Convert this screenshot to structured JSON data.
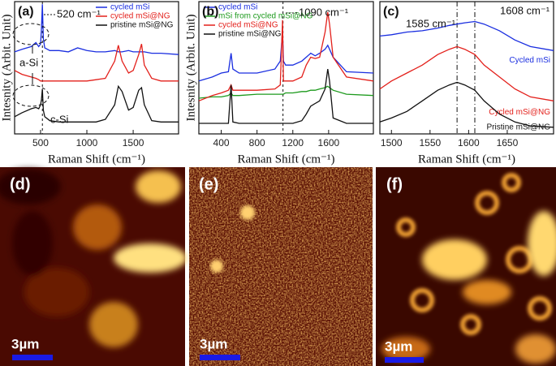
{
  "chart_data": [
    {
      "type": "line",
      "panel_label": "(a)",
      "x_label": "Raman Shift (cm⁻¹)",
      "y_label": "Intesnity (Arbit. Unit)",
      "xlim": [
        220,
        1990
      ],
      "xticks": [
        500,
        1000,
        1500
      ],
      "ylim": [
        0,
        10
      ],
      "legend": "upper right",
      "ref_lines": [
        520
      ],
      "annotations": [
        "520 cm⁻¹",
        "a-Si",
        "c-Si"
      ],
      "x": [
        220,
        300,
        400,
        450,
        480,
        500,
        510,
        520,
        530,
        545,
        600,
        700,
        800,
        900,
        1000,
        1100,
        1200,
        1300,
        1340,
        1380,
        1450,
        1500,
        1560,
        1590,
        1620,
        1700,
        1800,
        1990
      ],
      "series": [
        {
          "name": "cycled mSi",
          "color": "#1a2ee0",
          "values": [
            6.2,
            6.4,
            6.6,
            6.9,
            6.6,
            6.8,
            8,
            9.8,
            7.2,
            6.5,
            6.3,
            6.3,
            6.2,
            6.5,
            6.3,
            6.2,
            6.2,
            6.3,
            6.2,
            6.2,
            6.3,
            6.2,
            6.2,
            6.2,
            6.2,
            6.1,
            6.1,
            6.0
          ]
        },
        {
          "name": "cycled mSi@NG",
          "color": "#e3201b",
          "values": [
            4.8,
            4.5,
            4.3,
            4.2,
            4.1,
            4.0,
            4.0,
            4.0,
            4.0,
            4.0,
            4.0,
            4.0,
            4.0,
            4.0,
            4.0,
            4.1,
            4.2,
            5.5,
            6.7,
            5.5,
            4.6,
            4.8,
            6.0,
            6.8,
            5.2,
            4.2,
            4.0,
            4.0
          ]
        },
        {
          "name": "pristine mSi@NG",
          "color": "#111111",
          "values": [
            1.3,
            1.6,
            1.9,
            2.0,
            1.9,
            2.2,
            2.6,
            3.4,
            1.8,
            1.3,
            1.0,
            0.9,
            0.9,
            0.9,
            0.9,
            0.9,
            1.1,
            2.2,
            3.6,
            3.2,
            1.8,
            2.0,
            3.3,
            3.5,
            2.2,
            1.0,
            0.9,
            0.9
          ]
        }
      ]
    },
    {
      "type": "line",
      "panel_label": "(b)",
      "x_label": "Raman Shift (cm⁻¹)",
      "y_label": "Intesnity (Arbit. Unit)",
      "xlim": [
        150,
        2100
      ],
      "xticks": [
        400,
        800,
        1200,
        1600
      ],
      "ylim": [
        0,
        10
      ],
      "legend": "upper left",
      "ref_lines": [
        1090
      ],
      "annotations": [
        "1090 cm⁻¹"
      ],
      "x": [
        150,
        300,
        400,
        480,
        510,
        530,
        600,
        800,
        1000,
        1060,
        1085,
        1095,
        1120,
        1200,
        1300,
        1350,
        1400,
        1450,
        1500,
        1560,
        1590,
        1610,
        1650,
        1800,
        2100
      ],
      "series": [
        {
          "name": "cycled mSi",
          "color": "#1a2ee0",
          "values": [
            4.0,
            4.3,
            4.6,
            4.7,
            6.1,
            4.9,
            4.6,
            4.6,
            4.9,
            5.5,
            7.7,
            5.5,
            5.2,
            5.2,
            5.5,
            5.8,
            6.1,
            5.9,
            6.1,
            6.4,
            6.7,
            6.4,
            5.8,
            4.7,
            4.6
          ]
        },
        {
          "name": "mSi from cycled mSi@NG",
          "color": "#1d9a1d",
          "values": [
            2.7,
            2.8,
            2.8,
            2.9,
            3.1,
            2.9,
            2.9,
            3.0,
            3.0,
            3.0,
            3.0,
            3.0,
            3.1,
            3.1,
            3.2,
            3.2,
            3.3,
            3.3,
            3.4,
            3.5,
            3.6,
            3.5,
            3.3,
            3.0,
            2.9
          ]
        },
        {
          "name": "cycled mSi@NG",
          "color": "#e3201b",
          "values": [
            2.5,
            2.9,
            3.1,
            3.3,
            3.7,
            3.3,
            3.3,
            3.3,
            3.4,
            3.7,
            8.6,
            4.0,
            4.0,
            4.0,
            4.3,
            5.2,
            5.8,
            5.7,
            5.8,
            7.7,
            9.2,
            8.3,
            5.8,
            4.3,
            4.0
          ]
        },
        {
          "name": "pristine mSi@NG",
          "color": "#111111",
          "values": [
            0.8,
            0.8,
            0.8,
            0.8,
            3.7,
            0.9,
            0.8,
            0.8,
            0.8,
            0.8,
            0.8,
            0.8,
            0.8,
            0.8,
            1.0,
            1.5,
            2.1,
            2.3,
            2.5,
            3.4,
            4.9,
            4.0,
            1.2,
            0.8,
            0.8
          ]
        }
      ]
    },
    {
      "type": "line",
      "panel_label": "(c)",
      "x_label": "Raman Shift (cm⁻¹)",
      "xlim": [
        1485,
        1710
      ],
      "xticks": [
        1500,
        1550,
        1600,
        1650
      ],
      "ylim": [
        0,
        10
      ],
      "legend": "inline",
      "ref_lines": [
        1585,
        1608
      ],
      "annotations": [
        "1585 cm⁻¹",
        "1608 cm⁻¹"
      ],
      "x": [
        1485,
        1500,
        1520,
        1540,
        1560,
        1575,
        1585,
        1595,
        1608,
        1620,
        1640,
        1660,
        1680,
        1710
      ],
      "series": [
        {
          "name": "Cycled mSi",
          "color": "#1a2ee0",
          "values": [
            7.4,
            7.5,
            7.7,
            7.8,
            8.0,
            8.2,
            8.3,
            8.4,
            8.5,
            8.3,
            7.8,
            7.1,
            6.6,
            6.3
          ]
        },
        {
          "name": "Cycled mSi@NG",
          "color": "#e3201b",
          "values": [
            3.4,
            4.0,
            4.6,
            5.2,
            6.0,
            6.4,
            6.6,
            6.4,
            6.0,
            5.2,
            4.3,
            3.4,
            2.8,
            2.5
          ]
        },
        {
          "name": "Pristine mSi@NG",
          "color": "#111111",
          "values": [
            0.9,
            1.2,
            1.7,
            2.5,
            3.3,
            3.7,
            3.9,
            3.7,
            3.3,
            2.5,
            1.5,
            0.9,
            0.6,
            0.5
          ]
        }
      ]
    }
  ],
  "maps": [
    {
      "label": "(d)",
      "scale": "3µm"
    },
    {
      "label": "(e)",
      "scale": "3µm"
    },
    {
      "label": "(f)",
      "scale": "3µm"
    }
  ]
}
